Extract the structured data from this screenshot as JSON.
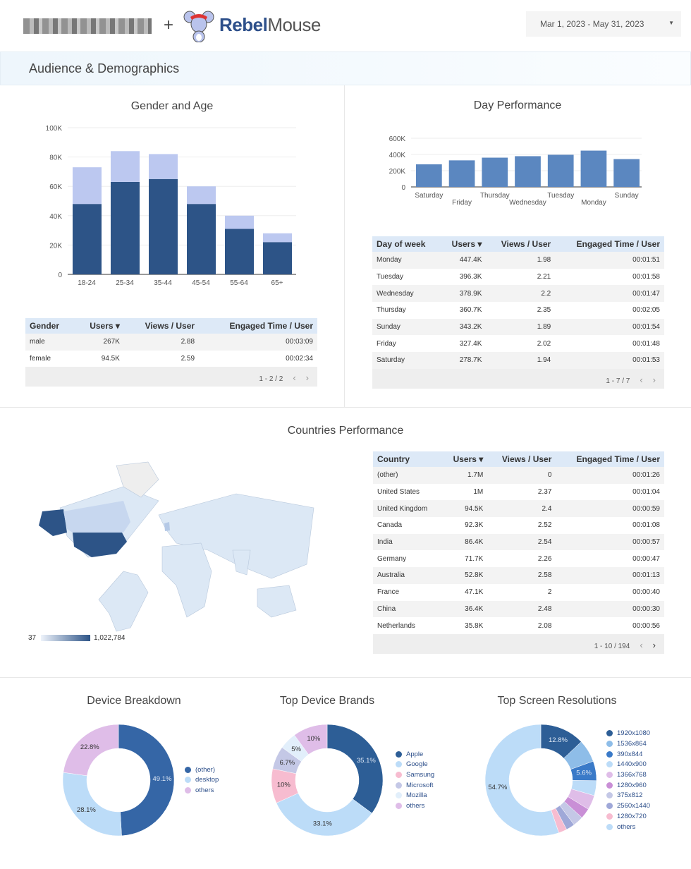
{
  "header": {
    "brand_bold": "Rebel",
    "brand_light": "Mouse",
    "plus": "+",
    "date_range": "Mar 1, 2023 - May 31, 2023"
  },
  "section_title": "Audience & Demographics",
  "colors": {
    "male": "#2d5487",
    "female": "#bcc8f0",
    "day_bar": "#5b87c0",
    "table_header": "#dde9f7"
  },
  "gender_age": {
    "title": "Gender and Age",
    "chart_data": {
      "type": "bar",
      "stacked": true,
      "categories": [
        "18-24",
        "25-34",
        "35-44",
        "45-54",
        "55-64",
        "65+"
      ],
      "series": [
        {
          "values": [
            48000,
            63000,
            65000,
            48000,
            31000,
            22000
          ]
        },
        {
          "values": [
            25000,
            21000,
            17000,
            12000,
            9000,
            6000
          ]
        }
      ],
      "yticks": [
        "0",
        "20K",
        "40K",
        "60K",
        "80K",
        "100K"
      ],
      "ylim": [
        0,
        100000
      ],
      "grid": true
    }
  },
  "gender_table": {
    "headers": [
      "Gender",
      "Users ▾",
      "Views / User",
      "Engaged Time / User"
    ],
    "rows": [
      [
        "male",
        "267K",
        "2.88",
        "00:03:09"
      ],
      [
        "female",
        "94.5K",
        "2.59",
        "00:02:34"
      ]
    ],
    "pager": "1 - 2 / 2"
  },
  "day_performance": {
    "title": "Day Performance",
    "chart_data": {
      "type": "bar",
      "categories": [
        "Saturday",
        "Friday",
        "Thursday",
        "Wednesday",
        "Tuesday",
        "Monday",
        "Sunday"
      ],
      "values": [
        278700,
        327400,
        360700,
        378900,
        396300,
        447400,
        343200
      ],
      "yticks": [
        "0",
        "200K",
        "400K",
        "600K"
      ],
      "ylim": [
        0,
        600000
      ],
      "grid": true
    }
  },
  "day_table": {
    "headers": [
      "Day of week",
      "Users ▾",
      "Views / User",
      "Engaged Time / User"
    ],
    "rows": [
      [
        "Monday",
        "447.4K",
        "1.98",
        "00:01:51"
      ],
      [
        "Tuesday",
        "396.3K",
        "2.21",
        "00:01:58"
      ],
      [
        "Wednesday",
        "378.9K",
        "2.2",
        "00:01:47"
      ],
      [
        "Thursday",
        "360.7K",
        "2.35",
        "00:02:05"
      ],
      [
        "Sunday",
        "343.2K",
        "1.89",
        "00:01:54"
      ],
      [
        "Friday",
        "327.4K",
        "2.02",
        "00:01:48"
      ],
      [
        "Saturday",
        "278.7K",
        "1.94",
        "00:01:53"
      ]
    ],
    "pager": "1 - 7 / 7"
  },
  "countries": {
    "title": "Countries Performance",
    "scale_min": "37",
    "scale_max": "1,022,784",
    "headers": [
      "Country",
      "Users ▾",
      "Views / User",
      "Engaged Time / User"
    ],
    "rows": [
      [
        "(other)",
        "1.7M",
        "0",
        "00:01:26"
      ],
      [
        "United States",
        "1M",
        "2.37",
        "00:01:04"
      ],
      [
        "United Kingdom",
        "94.5K",
        "2.4",
        "00:00:59"
      ],
      [
        "Canada",
        "92.3K",
        "2.52",
        "00:01:08"
      ],
      [
        "India",
        "86.4K",
        "2.54",
        "00:00:57"
      ],
      [
        "Germany",
        "71.7K",
        "2.26",
        "00:00:47"
      ],
      [
        "Australia",
        "52.8K",
        "2.58",
        "00:01:13"
      ],
      [
        "France",
        "47.1K",
        "2",
        "00:00:40"
      ],
      [
        "China",
        "36.4K",
        "2.48",
        "00:00:30"
      ],
      [
        "Netherlands",
        "35.8K",
        "2.08",
        "00:00:56"
      ]
    ],
    "pager": "1 - 10 / 194"
  },
  "donuts": [
    {
      "title": "Device Breakdown",
      "chart_data": {
        "type": "pie",
        "donut": true,
        "labels": [
          "(other)",
          "desktop",
          "others"
        ],
        "values": [
          49.1,
          28.1,
          22.8
        ],
        "colors": [
          "#3566a6",
          "#bcdcf8",
          "#dfbde8"
        ],
        "data_labels": [
          "49.1%",
          "28.1%",
          "22.8%"
        ]
      }
    },
    {
      "title": "Top Device Brands",
      "chart_data": {
        "type": "pie",
        "donut": true,
        "labels": [
          "Apple",
          "Google",
          "Samsung",
          "Microsoft",
          "Mozilla",
          "others"
        ],
        "values": [
          35.1,
          33.1,
          10,
          6.7,
          5,
          10
        ],
        "colors": [
          "#2d5e96",
          "#bcdcf8",
          "#f7bcd0",
          "#c4c8e6",
          "#e2effb",
          "#dfbde8"
        ],
        "data_labels": [
          "35.1%",
          "33.1%",
          "10%",
          "6.7%",
          "5%",
          "10%"
        ]
      }
    },
    {
      "title": "Top Screen Resolutions",
      "chart_data": {
        "type": "pie",
        "donut": true,
        "labels": [
          "1920x1080",
          "1536x864",
          "390x844",
          "1440x900",
          "1366x768",
          "1280x960",
          "375x812",
          "2560x1440",
          "1280x720",
          "others"
        ],
        "values": [
          12.8,
          6.5,
          5.6,
          4.3,
          4.2,
          3,
          3,
          2.5,
          2.4,
          54.7
        ],
        "colors": [
          "#2d5e96",
          "#8ebde8",
          "#3a7ac8",
          "#bcdcf8",
          "#dfbde8",
          "#c98fd6",
          "#c4c8e6",
          "#9fa8d8",
          "#f7bcd0",
          "#bcdcf8"
        ],
        "data_labels": [
          "12.8%",
          "",
          "5.6%",
          "",
          "",
          "",
          "",
          "",
          "",
          "54.7%"
        ]
      }
    }
  ]
}
